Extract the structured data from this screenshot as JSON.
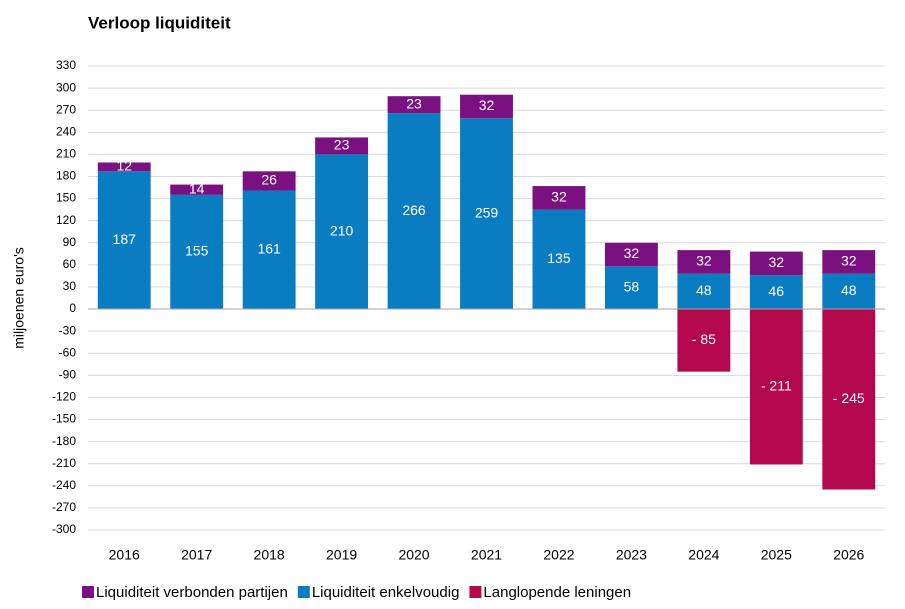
{
  "chart_data": {
    "type": "stacked_bar",
    "title": "Verloop liquiditeit",
    "y_label": "miljoenen euro's",
    "categories": [
      "2016",
      "2017",
      "2018",
      "2019",
      "2020",
      "2021",
      "2022",
      "2023",
      "2024",
      "2025",
      "2026"
    ],
    "series": [
      {
        "name": "Liquiditeit verbonden partijen",
        "color": "#7b1180",
        "values": [
          12,
          14,
          26,
          23,
          23,
          32,
          32,
          32,
          32,
          32,
          32
        ]
      },
      {
        "name": "Liquiditeit enkelvoudig",
        "color": "#0a7dc2",
        "values": [
          187,
          155,
          161,
          210,
          266,
          259,
          135,
          58,
          48,
          46,
          48
        ]
      },
      {
        "name": "Langlopende leningen",
        "color": "#b3084b",
        "values": [
          null,
          null,
          null,
          null,
          null,
          null,
          null,
          null,
          -85,
          -211,
          -245
        ],
        "value_labels": [
          null,
          null,
          null,
          null,
          null,
          null,
          null,
          null,
          "- 85",
          "- 211",
          "- 245"
        ]
      }
    ],
    "ylim": [
      -300,
      330
    ],
    "yticks": [
      -300,
      -270,
      -240,
      -210,
      -180,
      -150,
      -120,
      -90,
      -60,
      -30,
      0,
      30,
      60,
      90,
      120,
      150,
      180,
      210,
      240,
      270,
      300,
      330
    ],
    "grid": true,
    "legend": "bottom"
  }
}
